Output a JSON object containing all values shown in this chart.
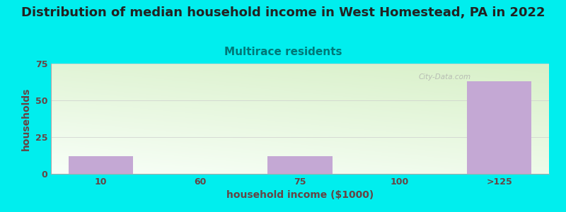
{
  "title": "Distribution of median household income in West Homestead, PA in 2022",
  "subtitle": "Multirace residents",
  "xlabel": "household income ($1000)",
  "ylabel": "households",
  "title_fontsize": 13,
  "subtitle_fontsize": 11,
  "label_fontsize": 10,
  "tick_fontsize": 9,
  "background_color": "#00EEEE",
  "plot_bg_color_topleft": "#d8f0c8",
  "plot_bg_color_bottomright": "#f8fff8",
  "bar_color": "#c4a8d4",
  "bar_edgecolor": "#c4a8d4",
  "title_color": "#222222",
  "subtitle_color": "#007777",
  "axis_label_color": "#664444",
  "tick_color": "#664444",
  "watermark_text": "City-Data.com",
  "categories": [
    "10",
    "60",
    "75",
    "100",
    ">125"
  ],
  "values": [
    12,
    0,
    12,
    0,
    63
  ],
  "ylim": [
    0,
    75
  ],
  "yticks": [
    0,
    25,
    50,
    75
  ],
  "grid_color": "#cccccc",
  "grid_alpha": 0.7
}
